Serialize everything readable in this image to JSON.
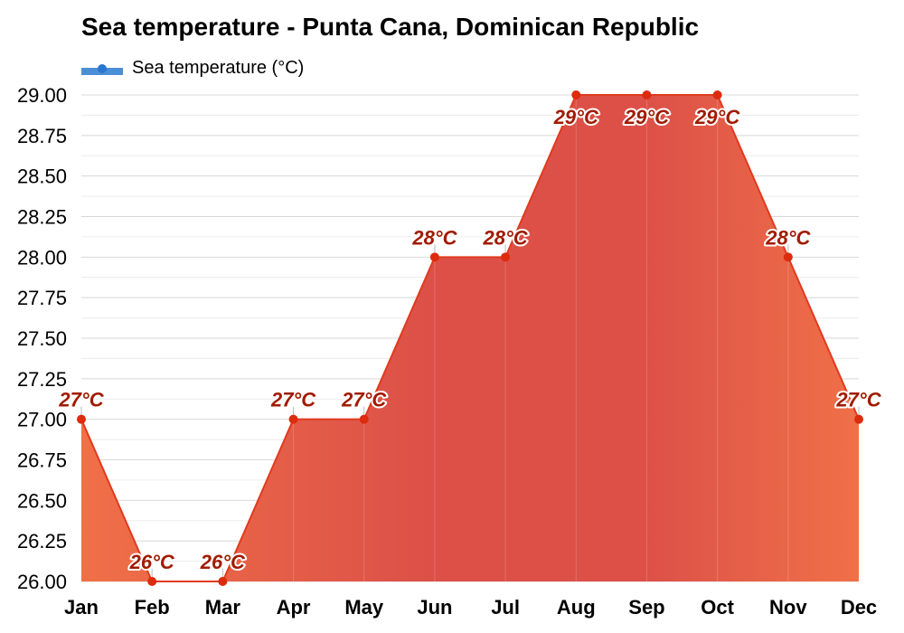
{
  "chart_data": {
    "type": "area",
    "title": "Sea temperature - Punta Cana, Dominican Republic",
    "xlabel": "",
    "ylabel": "",
    "categories": [
      "Jan",
      "Feb",
      "Mar",
      "Apr",
      "May",
      "Jun",
      "Jul",
      "Aug",
      "Sep",
      "Oct",
      "Nov",
      "Dec"
    ],
    "series": [
      {
        "name": "Sea temperature (°C)",
        "values": [
          27,
          26,
          26,
          27,
          27,
          28,
          28,
          29,
          29,
          29,
          28,
          27
        ],
        "data_labels": [
          "27°C",
          "26°C",
          "26°C",
          "27°C",
          "27°C",
          "28°C",
          "28°C",
          "29°C",
          "29°C",
          "29°C",
          "28°C",
          "27°C"
        ]
      }
    ],
    "ylim": [
      26.0,
      29.0
    ],
    "yticks": [
      "29.00",
      "28.75",
      "28.50",
      "28.25",
      "28.00",
      "27.75",
      "27.50",
      "27.25",
      "27.00",
      "26.75",
      "26.50",
      "26.25",
      "26.00"
    ],
    "grid": true,
    "legend_position": "top-left",
    "colors": {
      "line": "#e03a1e",
      "point": "#dd2b0e",
      "area_warm": "#f07048",
      "area_hot": "#dc5048",
      "label": "#a11b00",
      "legend": "#4a8fd6"
    }
  }
}
